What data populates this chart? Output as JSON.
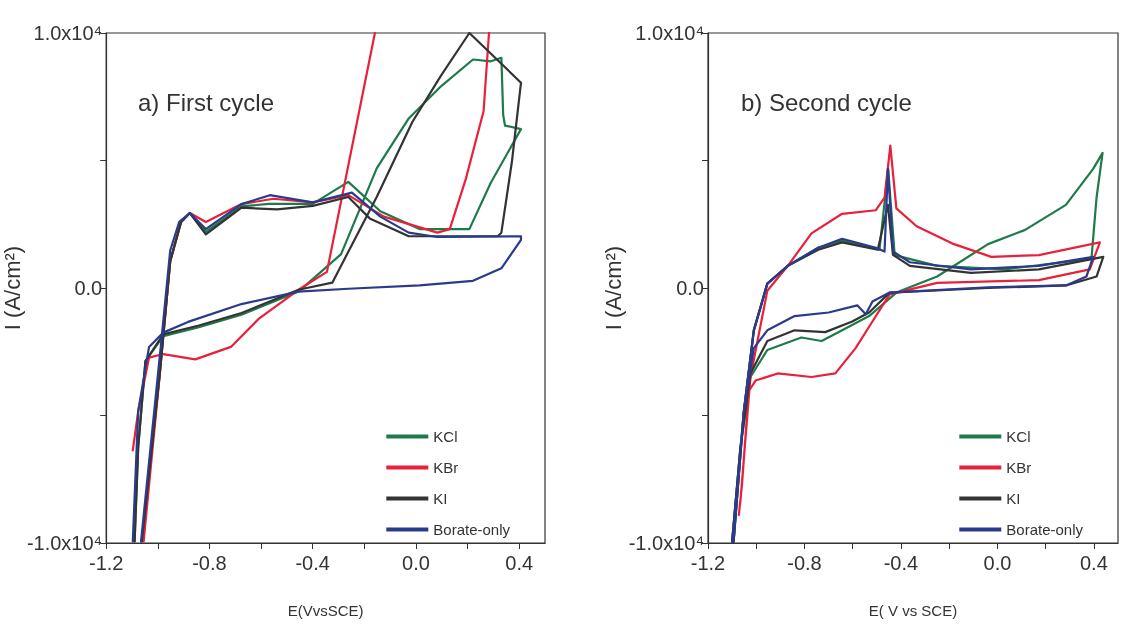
{
  "chart_data": [
    {
      "type": "line",
      "title": "a) First cycle",
      "xlabel": "E(VvsSCE)",
      "ylabel": "I (A/cm²)",
      "xlim": [
        -1.2,
        0.5
      ],
      "xticks": [
        -1.2,
        {
          "value": -1.0,
          "label": null
        },
        -0.8,
        {
          "value": -0.6,
          "label": null
        },
        -0.4,
        {
          "value": -0.2,
          "label": null
        },
        {
          "value": 0,
          "label": "0.0"
        },
        {
          "value": 0.2,
          "label": null
        },
        0.4
      ],
      "ylim": [
        -10000,
        10000
      ],
      "yticks": [
        {
          "value": -10000,
          "label": "-1.0x10⁴"
        },
        {
          "value": -5000,
          "label": null
        },
        {
          "value": 0,
          "label": "0.0"
        },
        {
          "value": 5000,
          "label": null
        },
        {
          "value": 10000,
          "label": "1.0x10⁴"
        }
      ],
      "grid": false,
      "legend": "bottom right",
      "marker": "none",
      "line_style": "solid",
      "series": [
        {
          "name": "KCl",
          "color": "#1f7a4a",
          "x": [
            -1.062,
            -0.993,
            -0.952,
            -0.91,
            -0.876,
            -0.814,
            -0.676,
            -0.57,
            -0.4,
            -0.262,
            -0.138,
            0.014,
            0.207,
            0.29,
            0.407,
            0.345,
            0.338,
            0.331,
            0.29,
            0.221,
            0.097,
            -0.028,
            -0.152,
            -0.29,
            -0.455,
            -0.676,
            -0.841,
            -0.979,
            -1.048,
            -1.076,
            -1.09
          ],
          "values": [
            -9940,
            -3430,
            1050,
            2590,
            2940,
            2200,
            3200,
            3300,
            3300,
            4160,
            3010,
            2310,
            2310,
            4130,
            6230,
            6370,
            6790,
            9030,
            8890,
            8960,
            7910,
            6650,
            4690,
            1330,
            -140,
            -1050,
            -1540,
            -1890,
            -2870,
            -6230,
            -9940
          ]
        },
        {
          "name": "KBr",
          "color": "#e8213a",
          "x": [
            -1.055,
            -0.993,
            -0.952,
            -0.91,
            -0.876,
            -0.814,
            -0.676,
            -0.552,
            -0.4,
            -0.262,
            -0.124,
            0.083,
            0.131,
            0.193,
            0.262,
            0.283,
            0.1,
            -0.159,
            -0.345,
            -0.455,
            -0.607,
            -0.717,
            -0.855,
            -0.979,
            -1.034,
            -1.076,
            -1.097
          ],
          "values": [
            -9940,
            -3430,
            1050,
            2590,
            2940,
            2590,
            3290,
            3500,
            3360,
            3640,
            2800,
            2170,
            2310,
            4270,
            6930,
            10000,
            null,
            10000,
            630,
            -70,
            -1190,
            -2310,
            -2800,
            -2590,
            -2730,
            -4830,
            -6370
          ]
        },
        {
          "name": "KI",
          "color": "#333333",
          "x": [
            -1.062,
            -0.993,
            -0.952,
            -0.91,
            -0.876,
            -0.814,
            -0.676,
            -0.538,
            -0.4,
            -0.262,
            -0.179,
            -0.028,
            0.317,
            0.331,
            0.372,
            0.407,
            0.4,
            0.207,
            0.097,
            -0.014,
            -0.152,
            -0.324,
            -0.455,
            -0.676,
            -0.841,
            -0.979,
            -1.048,
            -1.076,
            -1.09
          ],
          "values": [
            -9940,
            -3430,
            1050,
            2590,
            2940,
            2100,
            3150,
            3080,
            3220,
            3570,
            2730,
            2030,
            2030,
            2170,
            4970,
            8050,
            8120,
            10000,
            8330,
            6510,
            3570,
            210,
            -70,
            -980,
            -1470,
            -1820,
            -2870,
            -6230,
            -9940
          ]
        },
        {
          "name": "Borate-only",
          "color": "#2a3a8c",
          "x": [
            -1.065,
            -0.986,
            -0.952,
            -0.917,
            -0.876,
            -0.814,
            -0.676,
            -0.566,
            -0.4,
            -0.248,
            -0.138,
            -0.028,
            0.083,
            0.407,
            0.407,
            0.331,
            0.221,
            0.014,
            -0.262,
            -0.455,
            -0.676,
            -0.883,
            -0.979,
            -1.034,
            -1.076,
            -1.097
          ],
          "values": [
            -9940,
            -2030,
            1470,
            2590,
            2940,
            2310,
            3290,
            3640,
            3360,
            3740,
            2800,
            2170,
            2000,
            2030,
            1890,
            770,
            280,
            100,
            -30,
            -140,
            -630,
            -1330,
            -1750,
            -2310,
            -4830,
            -9940
          ]
        }
      ]
    },
    {
      "type": "line",
      "title": "b) Second cycle",
      "xlabel": "E( V vs SCE)",
      "ylabel": "I (A/cm²)",
      "xlim": [
        -1.2,
        0.5
      ],
      "xticks": [
        -1.2,
        {
          "value": -1.0,
          "label": null
        },
        -0.8,
        {
          "value": -0.6,
          "label": null
        },
        -0.4,
        {
          "value": -0.2,
          "label": null
        },
        {
          "value": 0,
          "label": "0.0"
        },
        {
          "value": 0.2,
          "label": null
        },
        0.4
      ],
      "ylim": [
        -10000,
        10000
      ],
      "yticks": [
        {
          "value": -10000,
          "label": "-1.0x10⁴"
        },
        {
          "value": -5000,
          "label": null
        },
        {
          "value": 0,
          "label": "0.0"
        },
        {
          "value": 5000,
          "label": null
        },
        {
          "value": 10000,
          "label": "1.0x10⁴"
        }
      ],
      "grid": false,
      "legend": "bottom right",
      "marker": "none",
      "line_style": "solid",
      "series": [
        {
          "name": "KCl",
          "color": "#1f7a4a",
          "x": [
            -1.094,
            -1.052,
            -1.01,
            -0.954,
            -0.869,
            -0.743,
            -0.644,
            -0.489,
            -0.453,
            -0.426,
            -0.25,
            0.031,
            0.39,
            0.411,
            0.436,
            0.397,
            0.284,
            0.115,
            -0.039,
            -0.25,
            -0.419,
            -0.532,
            -0.63,
            -0.729,
            -0.813,
            -0.954,
            -1.024,
            -1.066,
            -1.1
          ],
          "values": [
            -9960,
            -4890,
            -1660,
            170,
            870,
            1580,
            1860,
            1500,
            4670,
            1290,
            870,
            730,
            1150,
            3540,
            5300,
            4670,
            3260,
            2280,
            1720,
            450,
            -180,
            -1100,
            -1590,
            -2080,
            -1940,
            -2430,
            -3490,
            -6300,
            -9960
          ]
        },
        {
          "name": "KBr",
          "color": "#e8213a",
          "x": [
            -1.066,
            -1.024,
            -0.954,
            -0.869,
            -0.771,
            -0.644,
            -0.504,
            -0.468,
            -0.444,
            -0.419,
            -0.335,
            -0.18,
            -0.025,
            0.172,
            0.425,
            0.383,
            0.172,
            -0.25,
            -0.447,
            -0.532,
            -0.588,
            -0.672,
            -0.771,
            -0.911,
            -1.003,
            -1.031,
            -1.059,
            -1.072
          ],
          "values": [
            -8410,
            -3490,
            -110,
            870,
            2140,
            2910,
            3050,
            3540,
            5580,
            3120,
            2420,
            1720,
            1220,
            1290,
            1790,
            730,
            310,
            200,
            -250,
            -1520,
            -2360,
            -3350,
            -3490,
            -3350,
            -3630,
            -4050,
            -7710,
            -8900
          ]
        },
        {
          "name": "KI",
          "color": "#333333",
          "x": [
            -1.094,
            -1.052,
            -1.01,
            -0.954,
            -0.869,
            -0.743,
            -0.644,
            -0.496,
            -0.454,
            -0.433,
            -0.363,
            -0.11,
            0.172,
            0.439,
            0.411,
            0.284,
            -0.039,
            -0.447,
            -0.532,
            -0.602,
            -0.714,
            -0.841,
            -0.954,
            -1.024,
            -1.066,
            -1.1
          ],
          "values": [
            -9960,
            -4890,
            -1660,
            170,
            870,
            1500,
            1790,
            1500,
            3260,
            1300,
            870,
            590,
            730,
            1220,
            450,
            100,
            0,
            -180,
            -960,
            -1310,
            -1730,
            -1660,
            -2080,
            -3350,
            -6300,
            -9960
          ]
        },
        {
          "name": "Borate-only",
          "color": "#2a3a8c",
          "x": [
            -1.094,
            -1.052,
            -1.01,
            -0.954,
            -0.869,
            -0.743,
            -0.644,
            -0.504,
            -0.468,
            -0.454,
            -0.433,
            -0.363,
            -0.11,
            0.172,
            0.397,
            0.369,
            0.284,
            -0.039,
            -0.447,
            -0.518,
            -0.546,
            -0.581,
            -0.7,
            -0.841,
            -0.954,
            -1.01,
            -1.052,
            -1.1
          ],
          "values": [
            -9960,
            -4890,
            -1660,
            170,
            870,
            1580,
            1930,
            1580,
            1430,
            4670,
            1430,
            1010,
            730,
            870,
            1220,
            450,
            100,
            30,
            -180,
            -530,
            -1030,
            -680,
            -960,
            -1100,
            -1660,
            -2360,
            -4890,
            -9960
          ]
        }
      ]
    }
  ]
}
